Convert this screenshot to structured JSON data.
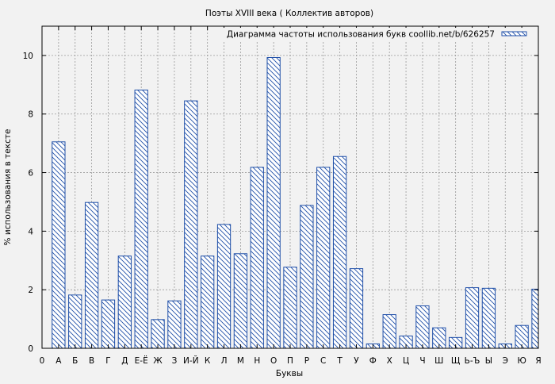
{
  "chart_data": {
    "type": "bar",
    "title": "Поэты XVIII века ( Коллектив авторов)",
    "xlabel": "Буквы",
    "ylabel": "% использования в тексте",
    "legend": {
      "label": "Диаграмма частоты использования букв coollib.net/b/626257",
      "position": "top-right"
    },
    "ylim": [
      0,
      11
    ],
    "yticks": [
      0,
      2,
      4,
      6,
      8,
      10
    ],
    "grid": true,
    "bar_color": "#1f4fa8",
    "xticks": [
      "0",
      "А",
      "Б",
      "В",
      "Г",
      "Д",
      "Е-Ё",
      "Ж",
      "З",
      "И-Й",
      "К",
      "Л",
      "М",
      "Н",
      "О",
      "П",
      "Р",
      "С",
      "Т",
      "У",
      "Ф",
      "Х",
      "Ц",
      "Ч",
      "Ш",
      "Щ",
      "Ь-Ъ",
      "Ы",
      "Э",
      "Ю",
      "Я"
    ],
    "categories": [
      "А",
      "Б",
      "В",
      "Г",
      "Д",
      "Е-Ё",
      "Ж",
      "З",
      "И-Й",
      "К",
      "Л",
      "М",
      "Н",
      "О",
      "П",
      "Р",
      "С",
      "Т",
      "У",
      "Ф",
      "Х",
      "Ц",
      "Ч",
      "Ш",
      "Щ",
      "Ь-Ъ",
      "Ы",
      "Э",
      "Ю",
      "Я"
    ],
    "values": [
      7.05,
      1.82,
      4.98,
      1.65,
      3.15,
      8.82,
      0.98,
      1.62,
      8.45,
      3.15,
      4.23,
      3.23,
      6.18,
      9.93,
      2.77,
      4.88,
      6.18,
      6.55,
      2.72,
      0.15,
      1.15,
      0.42,
      1.45,
      0.7,
      0.37,
      2.07,
      2.05,
      0.15,
      0.78,
      2.02
    ]
  }
}
